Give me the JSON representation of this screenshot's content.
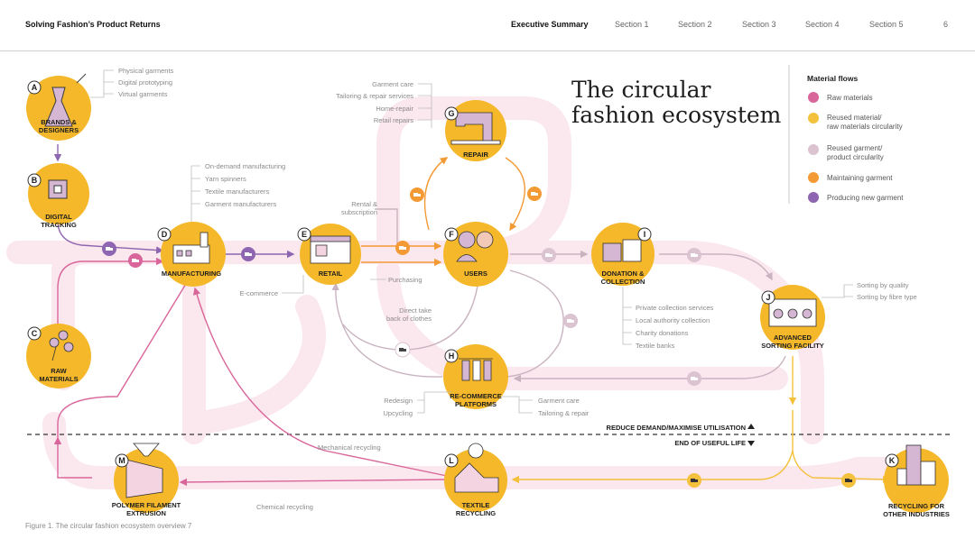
{
  "header": {
    "doc_title": "Solving Fashion’s Product Returns",
    "nav": [
      "Executive Summary",
      "Section 1",
      "Section 2",
      "Section 3",
      "Section 4",
      "Section 5"
    ],
    "active": "Executive Summary",
    "page_number": "6"
  },
  "title_line1": "The circular",
  "title_line2": "fashion ecosystem",
  "legend": {
    "title": "Material flows",
    "items": [
      {
        "line1": "Raw materials",
        "line2": "",
        "color": "#d9669a"
      },
      {
        "line1": "Reused material/",
        "line2": "raw materials circularity",
        "color": "#f4c13d"
      },
      {
        "line1": "Reused garment/",
        "line2": "product circularity",
        "color": "#dcc3d0"
      },
      {
        "line1": "Maintaining garment",
        "line2": "",
        "color": "#f39a34"
      },
      {
        "line1": "Producing new garment",
        "line2": "",
        "color": "#8e65b0"
      }
    ]
  },
  "nodes": {
    "A": {
      "letter": "A",
      "label1": "BRANDS &",
      "label2": "DESIGNERS",
      "icon": "dress-icon"
    },
    "B": {
      "letter": "B",
      "label1": "DIGITAL",
      "label2": "TRACKING",
      "icon": "chip-icon"
    },
    "C": {
      "letter": "C",
      "label1": "RAW",
      "label2": "MATERIALS",
      "icon": "cotton-icon"
    },
    "D": {
      "letter": "D",
      "label1": "MANUFACTURING",
      "label2": "",
      "icon": "factory-icon"
    },
    "E": {
      "letter": "E",
      "label1": "RETAIL",
      "label2": "",
      "icon": "store-icon"
    },
    "F": {
      "letter": "F",
      "label1": "USERS",
      "label2": "",
      "icon": "people-icon"
    },
    "G": {
      "letter": "G",
      "label1": "REPAIR",
      "label2": "",
      "icon": "sewing-machine-icon"
    },
    "H": {
      "letter": "H",
      "label1": "RE-COMMERCE",
      "label2": "PLATFORMS",
      "icon": "clothes-rack-icon"
    },
    "I": {
      "letter": "I",
      "label1": "DONATION &",
      "label2": "COLLECTION",
      "icon": "boxes-icon"
    },
    "J": {
      "letter": "J",
      "label1": "ADVANCED",
      "label2": "SORTING FACILITY",
      "icon": "sorting-machine-icon"
    },
    "K": {
      "letter": "K",
      "label1": "RECYCLING FOR",
      "label2": "OTHER INDUSTRIES",
      "icon": "buildings-icon"
    },
    "L": {
      "letter": "L",
      "label1": "TEXTILE",
      "label2": "RECYCLING",
      "icon": "recycling-plant-icon"
    },
    "M": {
      "letter": "M",
      "label1": "POLYMER FILAMENT",
      "label2": "EXTRUSION",
      "icon": "extruder-icon"
    }
  },
  "annotations": {
    "brands": [
      "Physical garments",
      "Digital prototyping",
      "Virtual garments"
    ],
    "repair": [
      "Garment care",
      "Tailoring & repair services",
      "Home-repair",
      "Retail repairs"
    ],
    "manufacturing": [
      "On-demand manufacturing",
      "Yarn spinners",
      "Textile manufacturers",
      "Garment manufacturers"
    ],
    "rental": [
      "Rental &",
      "subscription"
    ],
    "ecommerce": "E-commerce",
    "purchasing": "Purchasing",
    "direct_take_back": [
      "Direct take",
      "back of clothes"
    ],
    "collection": [
      "Private collection services",
      "Local authority collection",
      "Charity donations",
      "Textile banks"
    ],
    "sorting": [
      "Sorting by quality",
      "Sorting by fibre type"
    ],
    "recommerce_left": [
      "Redesign",
      "Upcycling"
    ],
    "recommerce_right": [
      "Garment care",
      "Tailoring & repair"
    ],
    "mechanical": "Mechanical recycling",
    "chemical": "Chemical recycling"
  },
  "zones": {
    "upper": "REDUCE DEMAND/MAXIMISE UTILISATION",
    "lower": "END OF USEFUL LIFE"
  },
  "caption": "Figure 1. The circular fashion ecosystem overview 7",
  "colors": {
    "node": "#f4b82a",
    "purple": "#8e65b0",
    "pink": "#d9669a",
    "grey_flow": "#cdb9c4",
    "orange": "#f39a34",
    "yellow": "#f4c13d",
    "band": "#fbe7ee"
  }
}
